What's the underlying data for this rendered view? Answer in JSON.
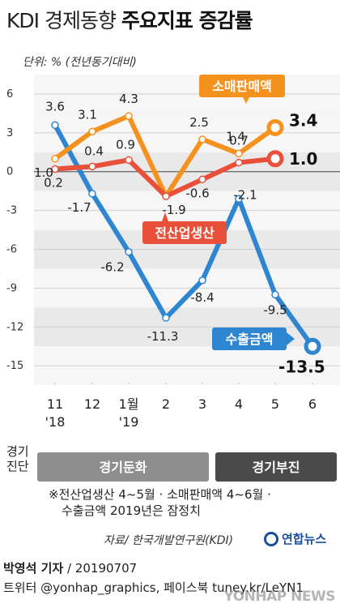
{
  "header": {
    "title_light": "KDI 경제동향",
    "title_bold": "주요지표 증감률",
    "unit": "단위: % (전년동기대비)"
  },
  "chart_data": {
    "type": "line",
    "categories": [
      "11\n'18",
      "12",
      "1월\n'19",
      "2",
      "3",
      "4",
      "5",
      "6"
    ],
    "series": [
      {
        "name": "소매판매액",
        "color": "#f5921e",
        "values": [
          1.0,
          3.1,
          4.3,
          -1.9,
          2.5,
          1.4,
          3.4,
          null
        ],
        "labels": [
          "1.0",
          "3.1",
          "4.3",
          null,
          "2.5",
          "1.4",
          "3.4",
          null
        ]
      },
      {
        "name": "전산업생산",
        "color": "#e9503a",
        "values": [
          0.2,
          0.4,
          0.9,
          -1.9,
          -0.6,
          0.7,
          1.0,
          null
        ],
        "labels": [
          "0.2",
          "0.4",
          "0.9",
          "-1.9",
          "-0.6",
          "0.7",
          "1.0",
          null
        ]
      },
      {
        "name": "수출금액",
        "color": "#2e86d1",
        "values": [
          3.6,
          -1.7,
          -6.2,
          -11.3,
          -8.4,
          -2.1,
          -9.5,
          -13.5
        ],
        "labels": [
          "3.6",
          "-1.7",
          "-6.2",
          "-11.3",
          "-8.4",
          "-2.1",
          "-9.5",
          "-13.5"
        ]
      }
    ],
    "yticks": [
      6,
      3,
      0,
      -3,
      -6,
      -9,
      -12,
      -15
    ],
    "ylim": [
      -16,
      6.5
    ],
    "grid": true
  },
  "phases": {
    "label": "경기\n진단",
    "slowdown": "경기둔화",
    "sluggish": "경기부진"
  },
  "note": {
    "line1": "※전산업생산 4~5월 · 소매판매액 4~6월 ·",
    "line2": "수출금액 2019년은 잠정치"
  },
  "source": "자료/ 한국개발연구원(KDI)",
  "logo": "연합뉴스",
  "footer": {
    "byline": "박영석 기자",
    "date": "/ 20190707",
    "social": "트위터 @yonhap_graphics, 페이스북 tuney.kr/LeYN1"
  },
  "watermark": "YONHAP NEWS"
}
